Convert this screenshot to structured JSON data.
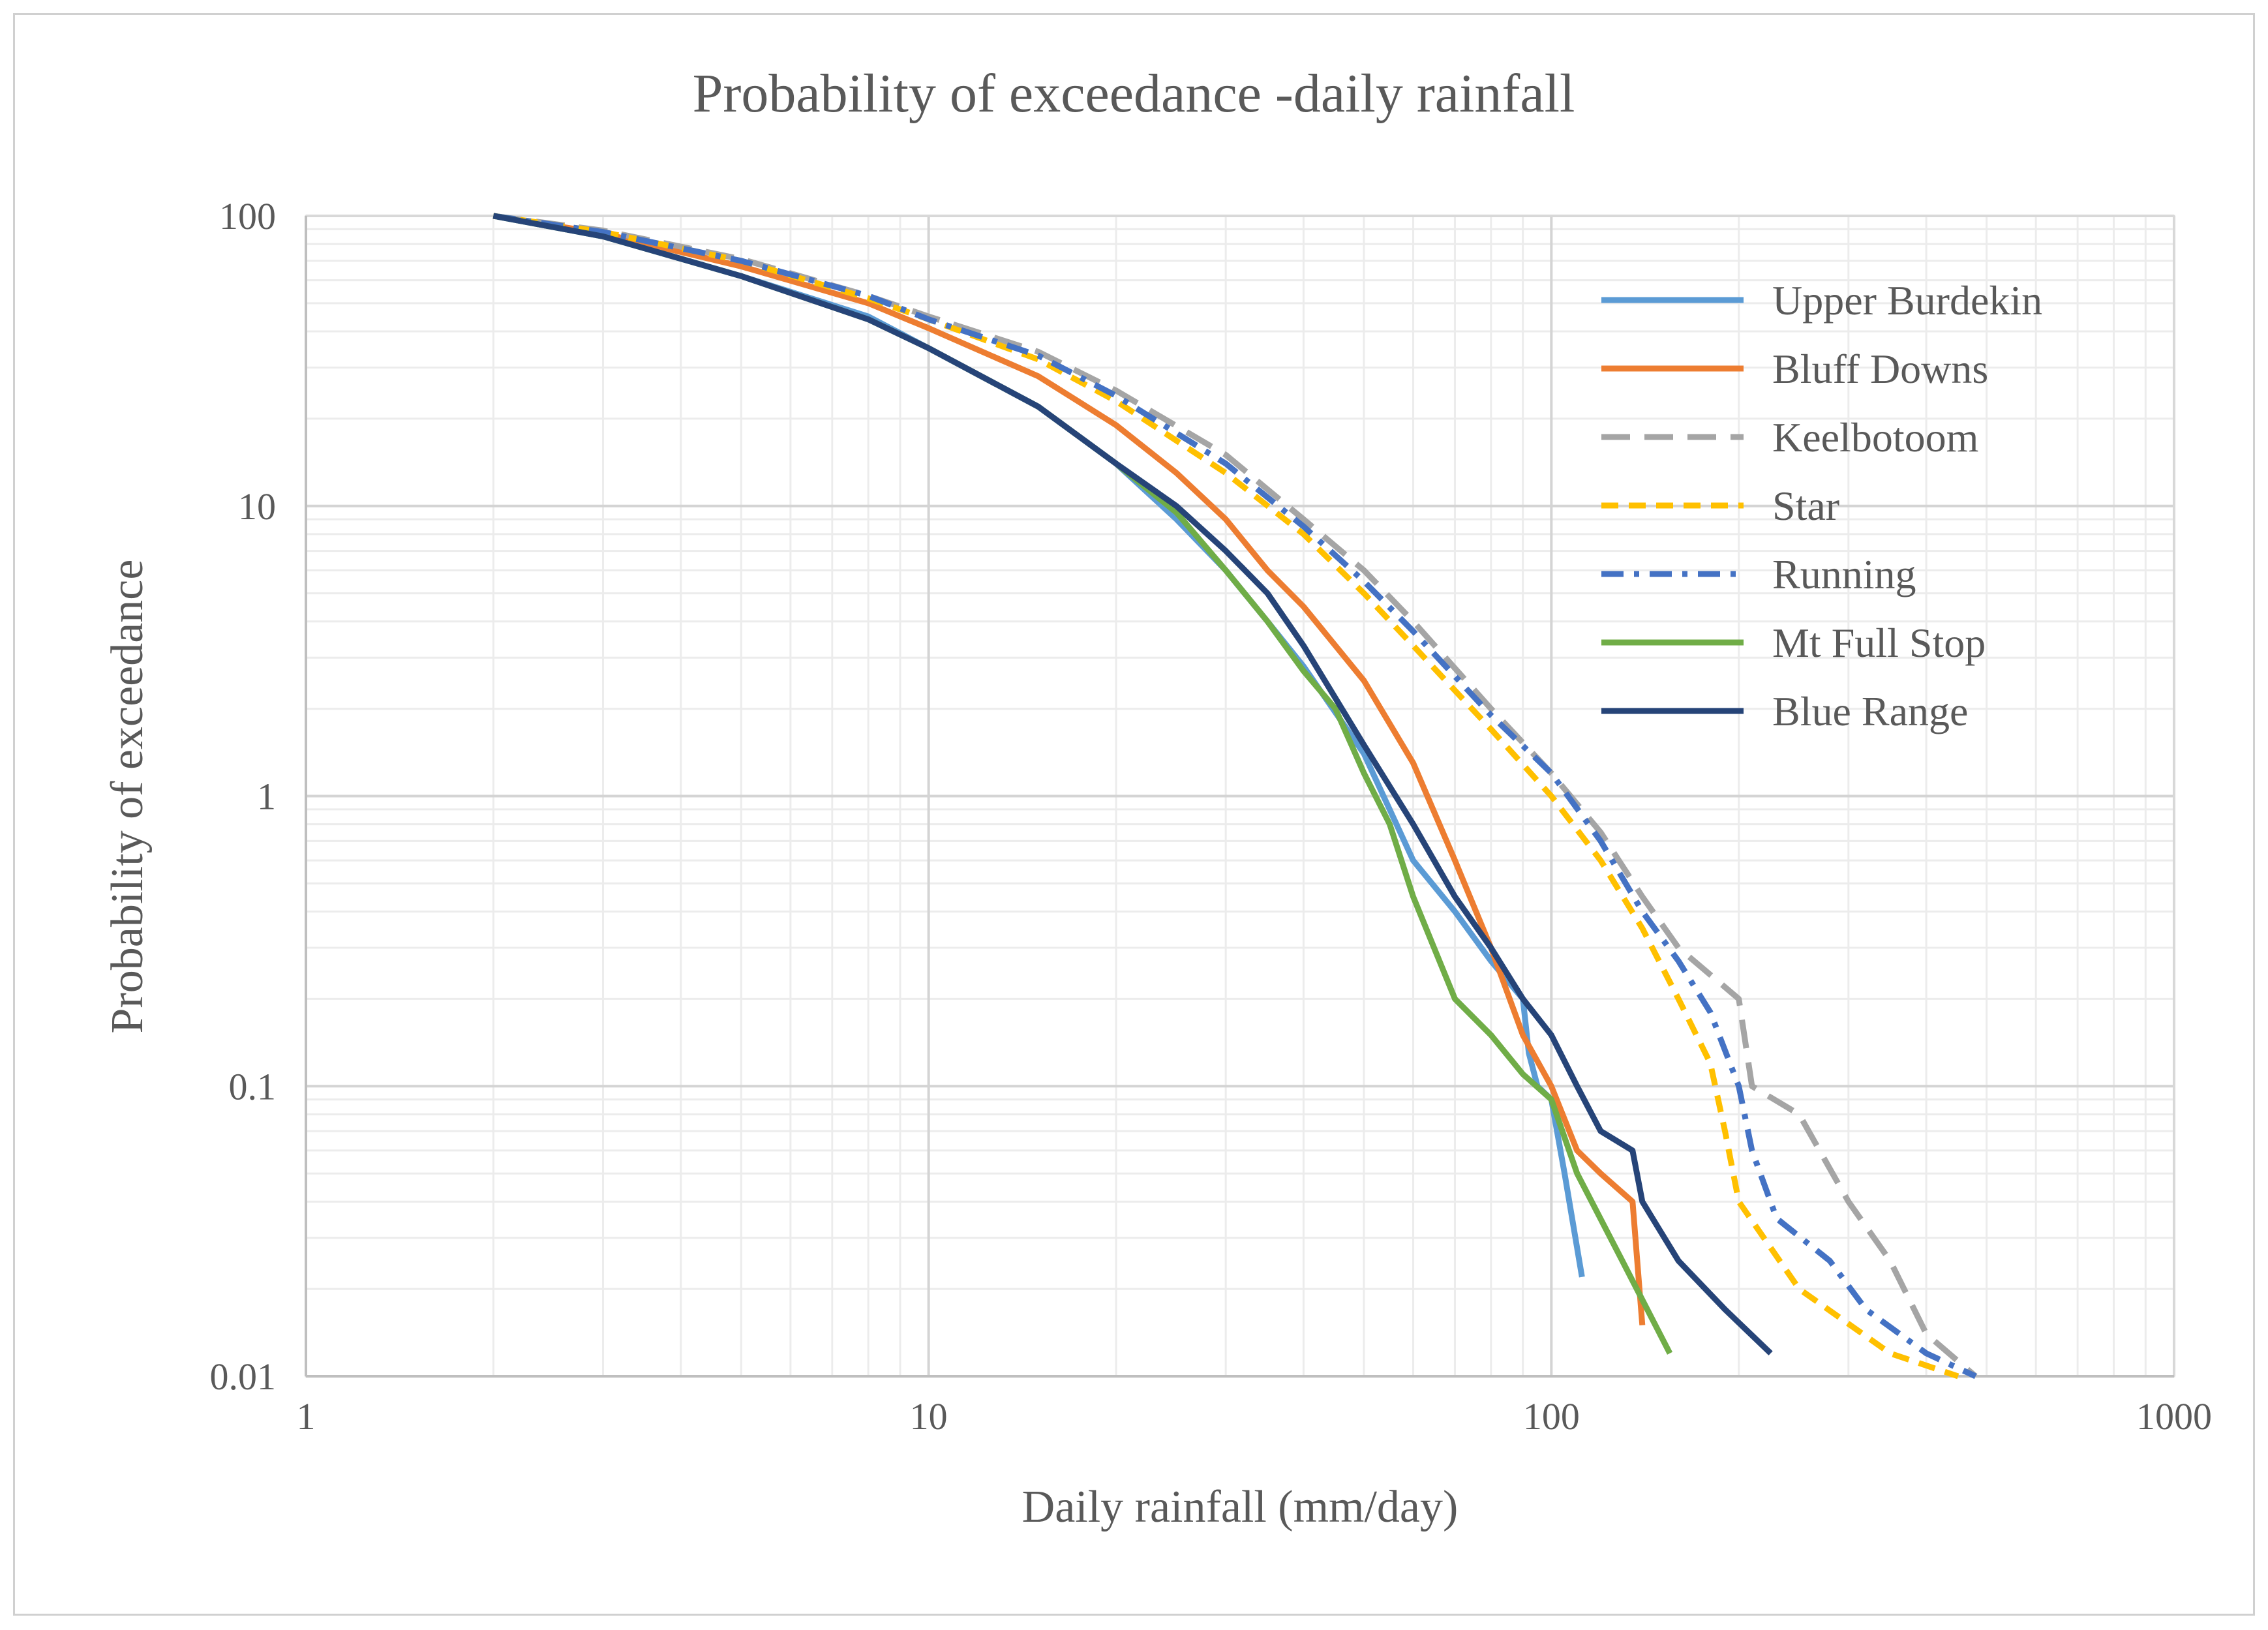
{
  "chart_data": {
    "type": "line",
    "title": "Probability of exceedance -daily rainfall",
    "xlabel": "Daily rainfall (mm/day)",
    "ylabel": "Probability of exceedance",
    "xscale": "log",
    "yscale": "log",
    "xlim": [
      1,
      1000
    ],
    "ylim": [
      0.01,
      100
    ],
    "x_ticks": [
      "1",
      "10",
      "100",
      "1000"
    ],
    "y_ticks": [
      "100",
      "10",
      "1",
      "0.1",
      "0.01"
    ],
    "grid": true,
    "legend_position": "top-right",
    "series": [
      {
        "name": "Upper Burdekin",
        "color": "#5B9BD5",
        "dash": "solid",
        "points": [
          [
            2,
            100
          ],
          [
            3,
            85
          ],
          [
            5,
            62
          ],
          [
            8,
            45
          ],
          [
            10,
            35
          ],
          [
            15,
            22
          ],
          [
            20,
            14
          ],
          [
            25,
            9
          ],
          [
            30,
            6
          ],
          [
            35,
            4
          ],
          [
            40,
            2.8
          ],
          [
            50,
            1.4
          ],
          [
            60,
            0.6
          ],
          [
            70,
            0.4
          ],
          [
            80,
            0.27
          ],
          [
            90,
            0.2
          ],
          [
            92,
            0.13
          ],
          [
            95,
            0.1
          ],
          [
            100,
            0.09
          ],
          [
            105,
            0.05
          ],
          [
            112,
            0.022
          ]
        ]
      },
      {
        "name": "Bluff Downs",
        "color": "#ED7D31",
        "dash": "solid",
        "points": [
          [
            2,
            100
          ],
          [
            3,
            87
          ],
          [
            5,
            67
          ],
          [
            8,
            50
          ],
          [
            10,
            41
          ],
          [
            15,
            28
          ],
          [
            20,
            19
          ],
          [
            25,
            13
          ],
          [
            30,
            9
          ],
          [
            35,
            6
          ],
          [
            40,
            4.5
          ],
          [
            50,
            2.5
          ],
          [
            60,
            1.3
          ],
          [
            70,
            0.6
          ],
          [
            80,
            0.3
          ],
          [
            90,
            0.15
          ],
          [
            100,
            0.1
          ],
          [
            110,
            0.06
          ],
          [
            120,
            0.05
          ],
          [
            135,
            0.04
          ],
          [
            140,
            0.015
          ]
        ]
      },
      {
        "name": "Keelbotoom",
        "color": "#A5A5A5",
        "dash": "long",
        "points": [
          [
            2,
            100
          ],
          [
            3,
            89
          ],
          [
            5,
            71
          ],
          [
            8,
            53
          ],
          [
            10,
            45
          ],
          [
            15,
            34
          ],
          [
            20,
            25
          ],
          [
            30,
            15
          ],
          [
            40,
            9
          ],
          [
            50,
            6
          ],
          [
            60,
            4
          ],
          [
            80,
            2
          ],
          [
            100,
            1.2
          ],
          [
            120,
            0.75
          ],
          [
            140,
            0.45
          ],
          [
            160,
            0.3
          ],
          [
            200,
            0.2
          ],
          [
            210,
            0.1
          ],
          [
            250,
            0.08
          ],
          [
            300,
            0.04
          ],
          [
            350,
            0.025
          ],
          [
            400,
            0.014
          ],
          [
            480,
            0.01
          ]
        ]
      },
      {
        "name": "Star",
        "color": "#FFC000",
        "dash": "medium",
        "points": [
          [
            2,
            100
          ],
          [
            3,
            88
          ],
          [
            5,
            70
          ],
          [
            8,
            52
          ],
          [
            10,
            44
          ],
          [
            15,
            32
          ],
          [
            20,
            23
          ],
          [
            30,
            13
          ],
          [
            40,
            8
          ],
          [
            50,
            5
          ],
          [
            60,
            3.3
          ],
          [
            80,
            1.7
          ],
          [
            100,
            1
          ],
          [
            120,
            0.6
          ],
          [
            140,
            0.35
          ],
          [
            160,
            0.2
          ],
          [
            180,
            0.12
          ],
          [
            190,
            0.07
          ],
          [
            200,
            0.04
          ],
          [
            250,
            0.02
          ],
          [
            350,
            0.012
          ],
          [
            450,
            0.01
          ]
        ]
      },
      {
        "name": "Running",
        "color": "#4472C4",
        "dash": "dashdot",
        "points": [
          [
            2,
            100
          ],
          [
            3,
            88
          ],
          [
            5,
            70
          ],
          [
            8,
            53
          ],
          [
            10,
            44
          ],
          [
            15,
            33
          ],
          [
            20,
            24
          ],
          [
            30,
            14
          ],
          [
            40,
            8.5
          ],
          [
            50,
            5.5
          ],
          [
            60,
            3.7
          ],
          [
            80,
            1.9
          ],
          [
            100,
            1.2
          ],
          [
            120,
            0.7
          ],
          [
            140,
            0.4
          ],
          [
            160,
            0.27
          ],
          [
            180,
            0.18
          ],
          [
            200,
            0.1
          ],
          [
            210,
            0.06
          ],
          [
            230,
            0.035
          ],
          [
            280,
            0.025
          ],
          [
            320,
            0.017
          ],
          [
            400,
            0.012
          ],
          [
            480,
            0.01
          ]
        ]
      },
      {
        "name": "Mt Full Stop",
        "color": "#70AD47",
        "dash": "solid",
        "points": [
          [
            2,
            100
          ],
          [
            3,
            85
          ],
          [
            5,
            62
          ],
          [
            8,
            44
          ],
          [
            10,
            35
          ],
          [
            15,
            22
          ],
          [
            20,
            14
          ],
          [
            25,
            9.5
          ],
          [
            30,
            6
          ],
          [
            35,
            4
          ],
          [
            40,
            2.7
          ],
          [
            45,
            2
          ],
          [
            50,
            1.2
          ],
          [
            55,
            0.8
          ],
          [
            60,
            0.45
          ],
          [
            70,
            0.2
          ],
          [
            80,
            0.15
          ],
          [
            90,
            0.11
          ],
          [
            100,
            0.09
          ],
          [
            110,
            0.05
          ],
          [
            130,
            0.025
          ],
          [
            155,
            0.012
          ]
        ]
      },
      {
        "name": "Blue Range",
        "color": "#264478",
        "dash": "solid",
        "points": [
          [
            2,
            100
          ],
          [
            3,
            85
          ],
          [
            5,
            62
          ],
          [
            8,
            44
          ],
          [
            10,
            35
          ],
          [
            15,
            22
          ],
          [
            20,
            14
          ],
          [
            25,
            10
          ],
          [
            30,
            7
          ],
          [
            35,
            5
          ],
          [
            40,
            3.3
          ],
          [
            50,
            1.5
          ],
          [
            60,
            0.8
          ],
          [
            70,
            0.45
          ],
          [
            80,
            0.3
          ],
          [
            90,
            0.2
          ],
          [
            100,
            0.15
          ],
          [
            110,
            0.1
          ],
          [
            120,
            0.07
          ],
          [
            135,
            0.06
          ],
          [
            140,
            0.04
          ],
          [
            160,
            0.025
          ],
          [
            190,
            0.017
          ],
          [
            225,
            0.012
          ]
        ]
      }
    ]
  }
}
